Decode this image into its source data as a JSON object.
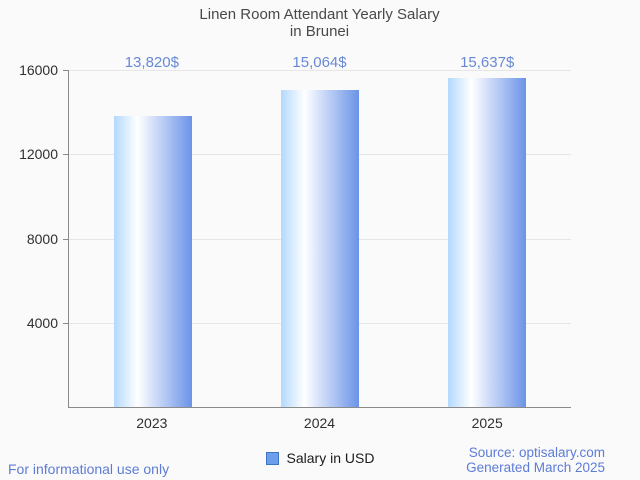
{
  "title": {
    "line1": "Linen Room Attendant Yearly Salary",
    "line2": "in Brunei"
  },
  "chart_data": {
    "type": "bar",
    "title": "Linen Room Attendant Yearly Salary in Brunei",
    "categories": [
      "2023",
      "2024",
      "2025"
    ],
    "values": [
      13820,
      15064,
      15637
    ],
    "value_labels": [
      "13,820$",
      "15,064$",
      "15,637$"
    ],
    "series": [
      {
        "name": "Salary in USD",
        "values": [
          13820,
          15064,
          15637
        ]
      }
    ],
    "xlabel": "",
    "ylabel": "",
    "ylim": [
      0,
      16000
    ],
    "ytick_labels": [
      "16000",
      "12000",
      "8000",
      "4000"
    ],
    "grid": true,
    "legend_position": "bottom"
  },
  "legend": {
    "label": "Salary in USD"
  },
  "footer": {
    "left": "For informational use only",
    "source": "Source: optisalary.com",
    "generated": "Generated March 2025"
  },
  "colors": {
    "bg": "#fafafa",
    "title_text": "#494949",
    "tick_text": "#2f2f2f",
    "axis": "#8a8a8a",
    "grid": "#e6e6e6",
    "accent_blue": "#6889d6",
    "footer_blue": "#5d7cd6",
    "bar_left": "#b2d9fd",
    "bar_mid": "#ffffff",
    "bar_right": "#6b93e8",
    "legend_fill": "#6d9eeb",
    "legend_border": "#3e74c6"
  }
}
